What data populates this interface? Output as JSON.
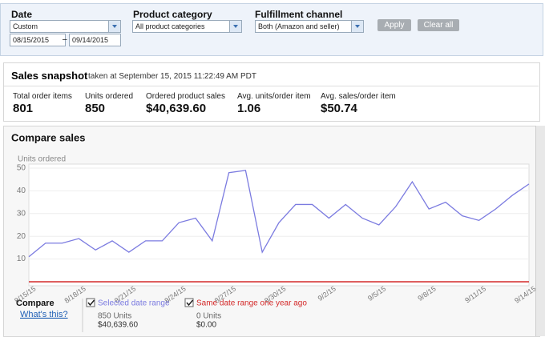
{
  "filters": {
    "date": {
      "label": "Date",
      "preset": "Custom",
      "from": "08/15/2015",
      "separator": "–",
      "to": "09/14/2015"
    },
    "product_category": {
      "label": "Product category",
      "value": "All product categories"
    },
    "fulfillment_channel": {
      "label": "Fulfillment channel",
      "value": "Both (Amazon and seller)"
    },
    "buttons": [
      "Apply",
      "Clear all"
    ]
  },
  "snapshot": {
    "title": "Sales snapshot",
    "timestamp": "taken at September 15, 2015 11:22:49 AM PDT",
    "metrics": [
      {
        "label": "Total order items",
        "value": 801
      },
      {
        "label": "Units ordered",
        "value": 850
      },
      {
        "label": "Ordered product sales",
        "value": "$40,639.60"
      },
      {
        "label": "Avg. units/order item",
        "value": 1.06
      },
      {
        "label": "Avg. sales/order item",
        "value": "$50.74"
      }
    ]
  },
  "chart_data": {
    "type": "line",
    "title": "Compare sales",
    "y_label": "Units ordered",
    "categories": [
      "8/15/15",
      null,
      null,
      "8/18/15",
      null,
      null,
      "8/21/15",
      null,
      null,
      "8/24/15",
      null,
      null,
      "8/27/15",
      null,
      null,
      "8/30/15",
      null,
      null,
      "9/2/15",
      null,
      null,
      "9/5/15",
      null,
      null,
      "9/8/15",
      null,
      null,
      "9/11/15",
      null,
      null,
      "9/14/15"
    ],
    "series": [
      {
        "name": "Selected date range",
        "color": "#7b7be0",
        "values": [
          11,
          17,
          17,
          19,
          14,
          18,
          13,
          18,
          18,
          26,
          28,
          18,
          48,
          49,
          13,
          26,
          34,
          34,
          28,
          34,
          28,
          25,
          33,
          44,
          32,
          35,
          29,
          27,
          32,
          38,
          43
        ]
      },
      {
        "name": "Same date range one year ago",
        "color": "#d42a2a",
        "values": [
          0,
          0,
          0,
          0,
          0,
          0,
          0,
          0,
          0,
          0,
          0,
          0,
          0,
          0,
          0,
          0,
          0,
          0,
          0,
          0,
          0,
          0,
          0,
          0,
          0,
          0,
          0,
          0,
          0,
          0,
          0
        ]
      }
    ],
    "ylim": [
      0,
      50
    ],
    "yticks": [
      10,
      20,
      30,
      40,
      50
    ],
    "grid": true
  },
  "legend": {
    "title": "Compare",
    "help_link": "What's this?",
    "items": [
      {
        "units": "850 Units",
        "sales": "$40,639.60"
      },
      {
        "units": "0 Units",
        "sales": "$0.00"
      }
    ]
  }
}
